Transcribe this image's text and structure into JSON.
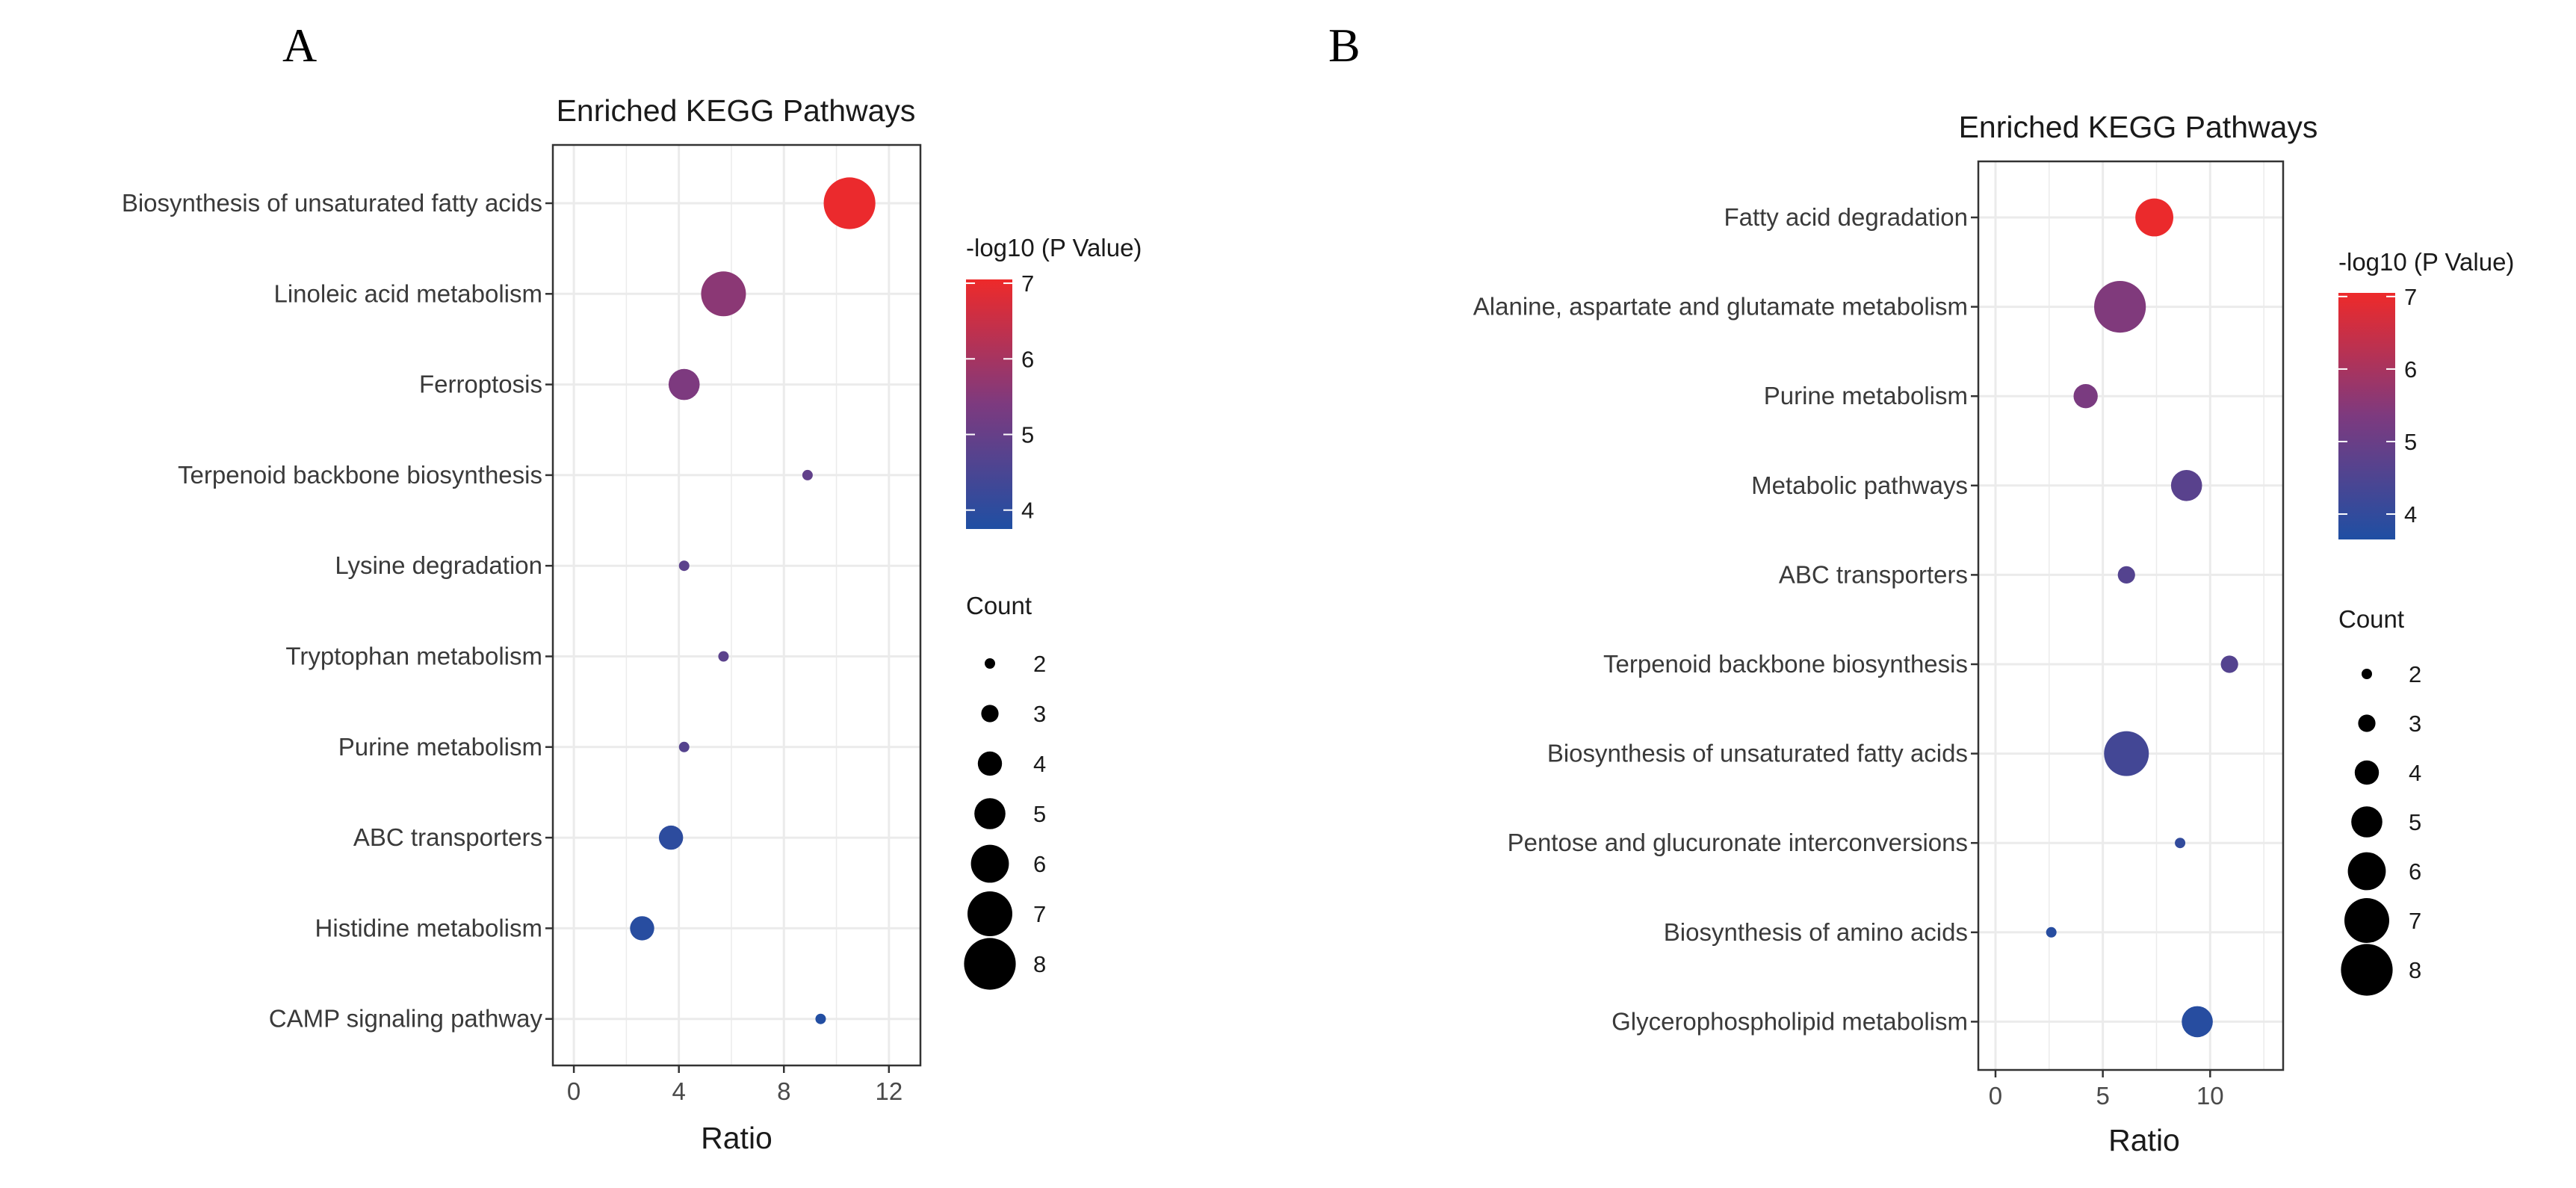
{
  "colors": {
    "low": "#1f4fa3",
    "mid": "#7d3a7f",
    "high": "#ee2a2a",
    "grid": "#ebebeb",
    "frame": "#333333",
    "text": "#3a3a3a"
  },
  "chart_data": [
    {
      "panel_label": "A",
      "type": "scatter",
      "title": "Enriched KEGG Pathways",
      "xlabel": "Ratio",
      "ylabel": "",
      "xlim": [
        -0.8,
        13.2
      ],
      "xticks": [
        0,
        4,
        8,
        12
      ],
      "categories": [
        "Biosynthesis of unsaturated fatty acids",
        "Linoleic acid metabolism",
        "Ferroptosis",
        "Terpenoid backbone biosynthesis",
        "Lysine degradation",
        "Tryptophan metabolism",
        "Purine metabolism",
        "ABC transporters",
        "Histidine metabolism",
        "CAMP signaling pathway"
      ],
      "ratio": [
        10.5,
        5.7,
        4.2,
        8.9,
        4.2,
        5.7,
        4.2,
        3.7,
        2.6,
        9.4
      ],
      "count": [
        8,
        7,
        5,
        2,
        2,
        2,
        2,
        4,
        4,
        2
      ],
      "neg_log10_p": [
        7.0,
        5.6,
        5.4,
        4.9,
        4.8,
        4.8,
        4.7,
        4.0,
        3.9,
        3.8
      ],
      "color_legend": {
        "title": "-log10 (P Value)",
        "ticks": [
          4,
          5,
          6,
          7
        ],
        "range": [
          3.75,
          7.05
        ]
      },
      "size_legend": {
        "title": "Count",
        "values": [
          2,
          3,
          4,
          5,
          6,
          7,
          8
        ]
      }
    },
    {
      "panel_label": "B",
      "type": "scatter",
      "title": "Enriched KEGG Pathways",
      "xlabel": "Ratio",
      "ylabel": "",
      "xlim": [
        -0.8,
        13.4
      ],
      "xticks": [
        0,
        5,
        10
      ],
      "categories": [
        "Fatty acid degradation",
        "Alanine, aspartate and glutamate metabolism",
        "Purine metabolism",
        "Metabolic pathways",
        "ABC transporters",
        "Terpenoid backbone biosynthesis",
        "Biosynthesis of unsaturated fatty acids",
        "Pentose and glucuronate interconversions",
        "Biosynthesis of amino acids",
        "Glycerophospholipid metabolism"
      ],
      "ratio": [
        7.4,
        5.8,
        4.2,
        8.9,
        6.1,
        10.9,
        6.1,
        8.6,
        2.6,
        9.4
      ],
      "count": [
        6,
        8,
        4,
        5,
        3,
        3,
        7,
        2,
        2,
        5
      ],
      "neg_log10_p": [
        7.0,
        5.4,
        5.3,
        4.7,
        4.6,
        4.6,
        4.3,
        4.0,
        3.8,
        3.8
      ],
      "color_legend": {
        "title": "-log10 (P Value)",
        "ticks": [
          4,
          5,
          6,
          7
        ],
        "range": [
          3.65,
          7.05
        ]
      },
      "size_legend": {
        "title": "Count",
        "values": [
          2,
          3,
          4,
          5,
          6,
          7,
          8
        ]
      }
    }
  ]
}
